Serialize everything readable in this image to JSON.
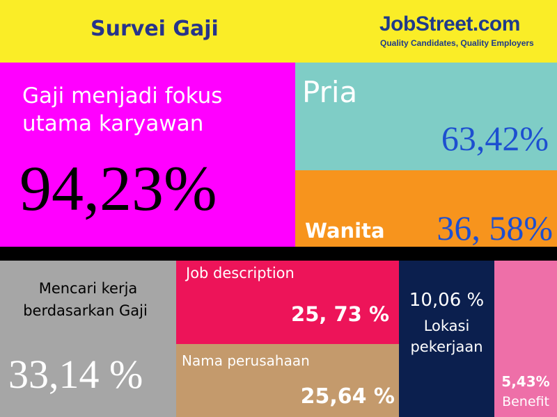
{
  "header": {
    "title": "Survei Gaji",
    "logo": {
      "name": "JobStreet.com",
      "tagline": "Quality Candidates, Quality Employers"
    }
  },
  "blocks": {
    "focus": {
      "lines": [
        "Gaji menjadi fokus",
        "utama karyawan"
      ],
      "value": "94,23%"
    },
    "male": {
      "label": "Pria",
      "value": "63,42%"
    },
    "female": {
      "label": "Wanita",
      "value": "36, 58%"
    },
    "search": {
      "lines": [
        "Mencari kerja",
        "berdasarkan Gaji"
      ],
      "value": "33,14 %"
    },
    "job": {
      "label": "Job description",
      "value": "25, 73 %"
    },
    "company": {
      "label": "Nama perusahaan",
      "value": "25,64 %"
    },
    "location": {
      "value": "10,06 %",
      "lines": [
        "Lokasi",
        "pekerjaan"
      ]
    },
    "benefit": {
      "value": "5,43%",
      "label": "Benefit"
    }
  }
}
